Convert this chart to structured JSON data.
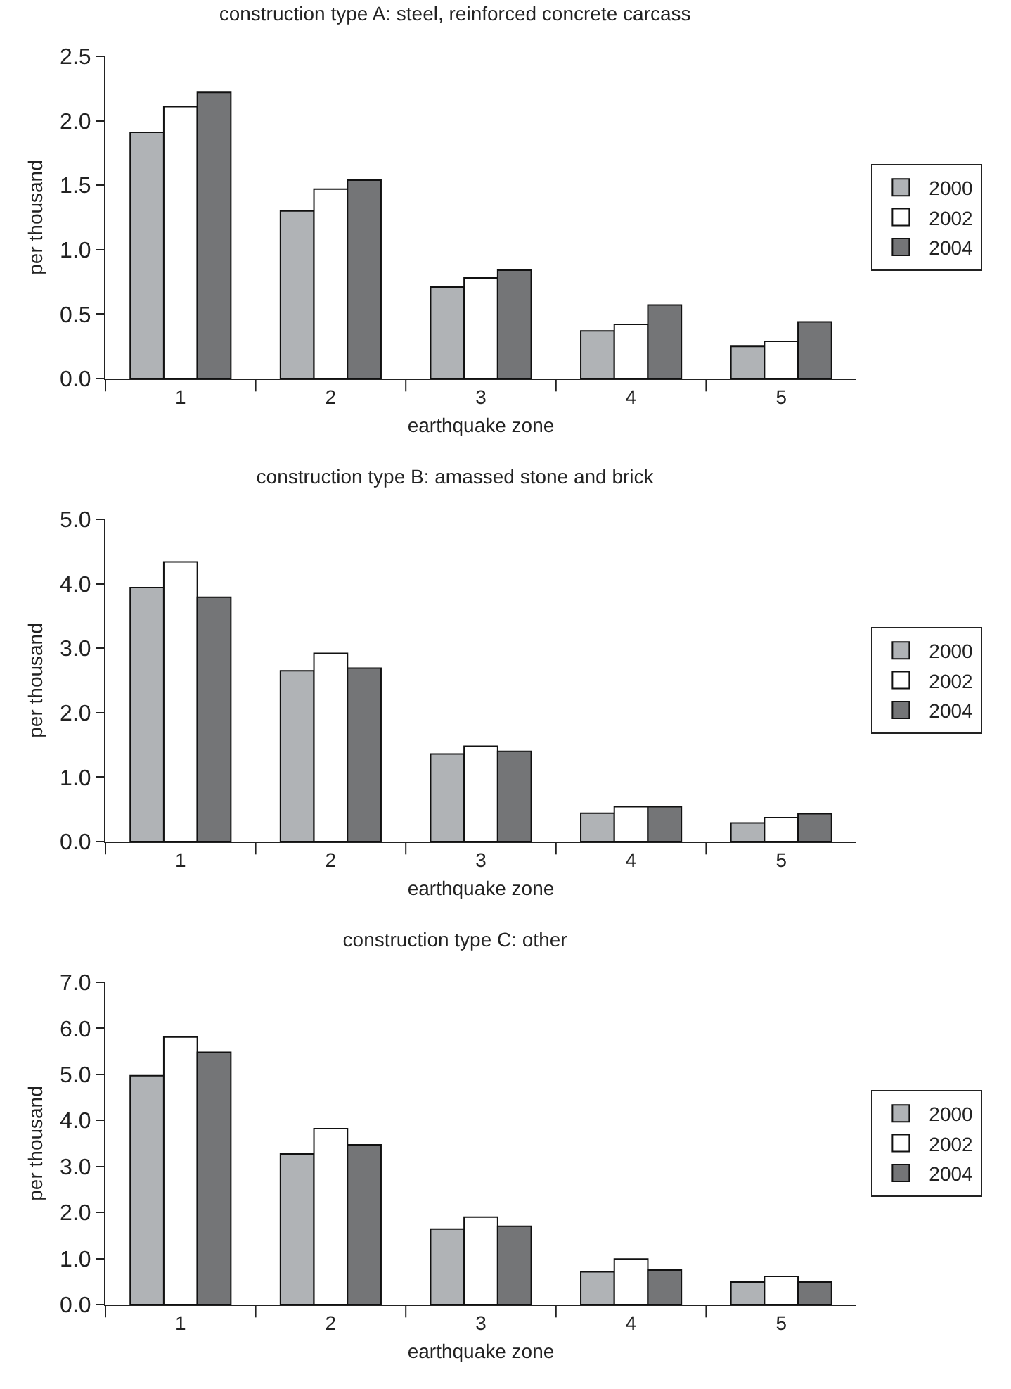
{
  "chart_data": [
    {
      "type": "bar",
      "title": "construction type A: steel, reinforced concrete carcass",
      "xlabel": "earthquake zone",
      "ylabel": "per thousand",
      "categories": [
        "1",
        "2",
        "3",
        "4",
        "5"
      ],
      "series": [
        {
          "name": "2000",
          "color": "#b0b3b6",
          "values": [
            1.91,
            1.3,
            0.71,
            0.37,
            0.25
          ]
        },
        {
          "name": "2002",
          "color": "#ffffff",
          "values": [
            2.11,
            1.47,
            0.78,
            0.42,
            0.29
          ]
        },
        {
          "name": "2004",
          "color": "#747577",
          "values": [
            2.22,
            1.54,
            0.84,
            0.57,
            0.44
          ]
        }
      ],
      "ylim": [
        0,
        2.5
      ],
      "yticks": [
        {
          "value": 0,
          "label": "0.0"
        },
        0.5,
        {
          "value": 1,
          "label": "1.0"
        },
        1.5,
        {
          "value": 2,
          "label": "2.0"
        },
        2.5
      ],
      "grid": false,
      "legend": "right"
    },
    {
      "type": "bar",
      "title": "construction type B: amassed stone and brick",
      "xlabel": "earthquake zone",
      "ylabel": "per thousand",
      "categories": [
        "1",
        "2",
        "3",
        "4",
        "5"
      ],
      "series": [
        {
          "name": "2000",
          "color": "#b0b3b6",
          "values": [
            3.94,
            2.65,
            1.36,
            0.44,
            0.29
          ]
        },
        {
          "name": "2002",
          "color": "#ffffff",
          "values": [
            4.34,
            2.92,
            1.48,
            0.54,
            0.37
          ]
        },
        {
          "name": "2004",
          "color": "#747577",
          "values": [
            3.79,
            2.69,
            1.4,
            0.54,
            0.43
          ]
        }
      ],
      "ylim": [
        0,
        5
      ],
      "yticks": [
        {
          "value": 0,
          "label": "0.0"
        },
        {
          "value": 1,
          "label": "1.0"
        },
        {
          "value": 2,
          "label": "2.0"
        },
        {
          "value": 3,
          "label": "3.0"
        },
        {
          "value": 4,
          "label": "4.0"
        },
        {
          "value": 5,
          "label": "5.0"
        }
      ],
      "grid": false,
      "legend": "right"
    },
    {
      "type": "bar",
      "title": "construction type C: other",
      "xlabel": "earthquake zone",
      "ylabel": "per thousand",
      "categories": [
        "1",
        "2",
        "3",
        "4",
        "5"
      ],
      "series": [
        {
          "name": "2000",
          "color": "#b0b3b6",
          "values": [
            4.97,
            3.27,
            1.64,
            0.71,
            0.49
          ]
        },
        {
          "name": "2002",
          "color": "#ffffff",
          "values": [
            5.81,
            3.82,
            1.9,
            0.99,
            0.61
          ]
        },
        {
          "name": "2004",
          "color": "#747577",
          "values": [
            5.48,
            3.47,
            1.7,
            0.75,
            0.49
          ]
        }
      ],
      "ylim": [
        0,
        7
      ],
      "yticks": [
        {
          "value": 0,
          "label": "0.0"
        },
        {
          "value": 1,
          "label": "1.0"
        },
        {
          "value": 2,
          "label": "2.0"
        },
        {
          "value": 3,
          "label": "3.0"
        },
        {
          "value": 4,
          "label": "4.0"
        },
        {
          "value": 5,
          "label": "5.0"
        },
        {
          "value": 6,
          "label": "6.0"
        },
        {
          "value": 7,
          "label": "7.0"
        }
      ],
      "grid": false,
      "legend": "right"
    }
  ]
}
